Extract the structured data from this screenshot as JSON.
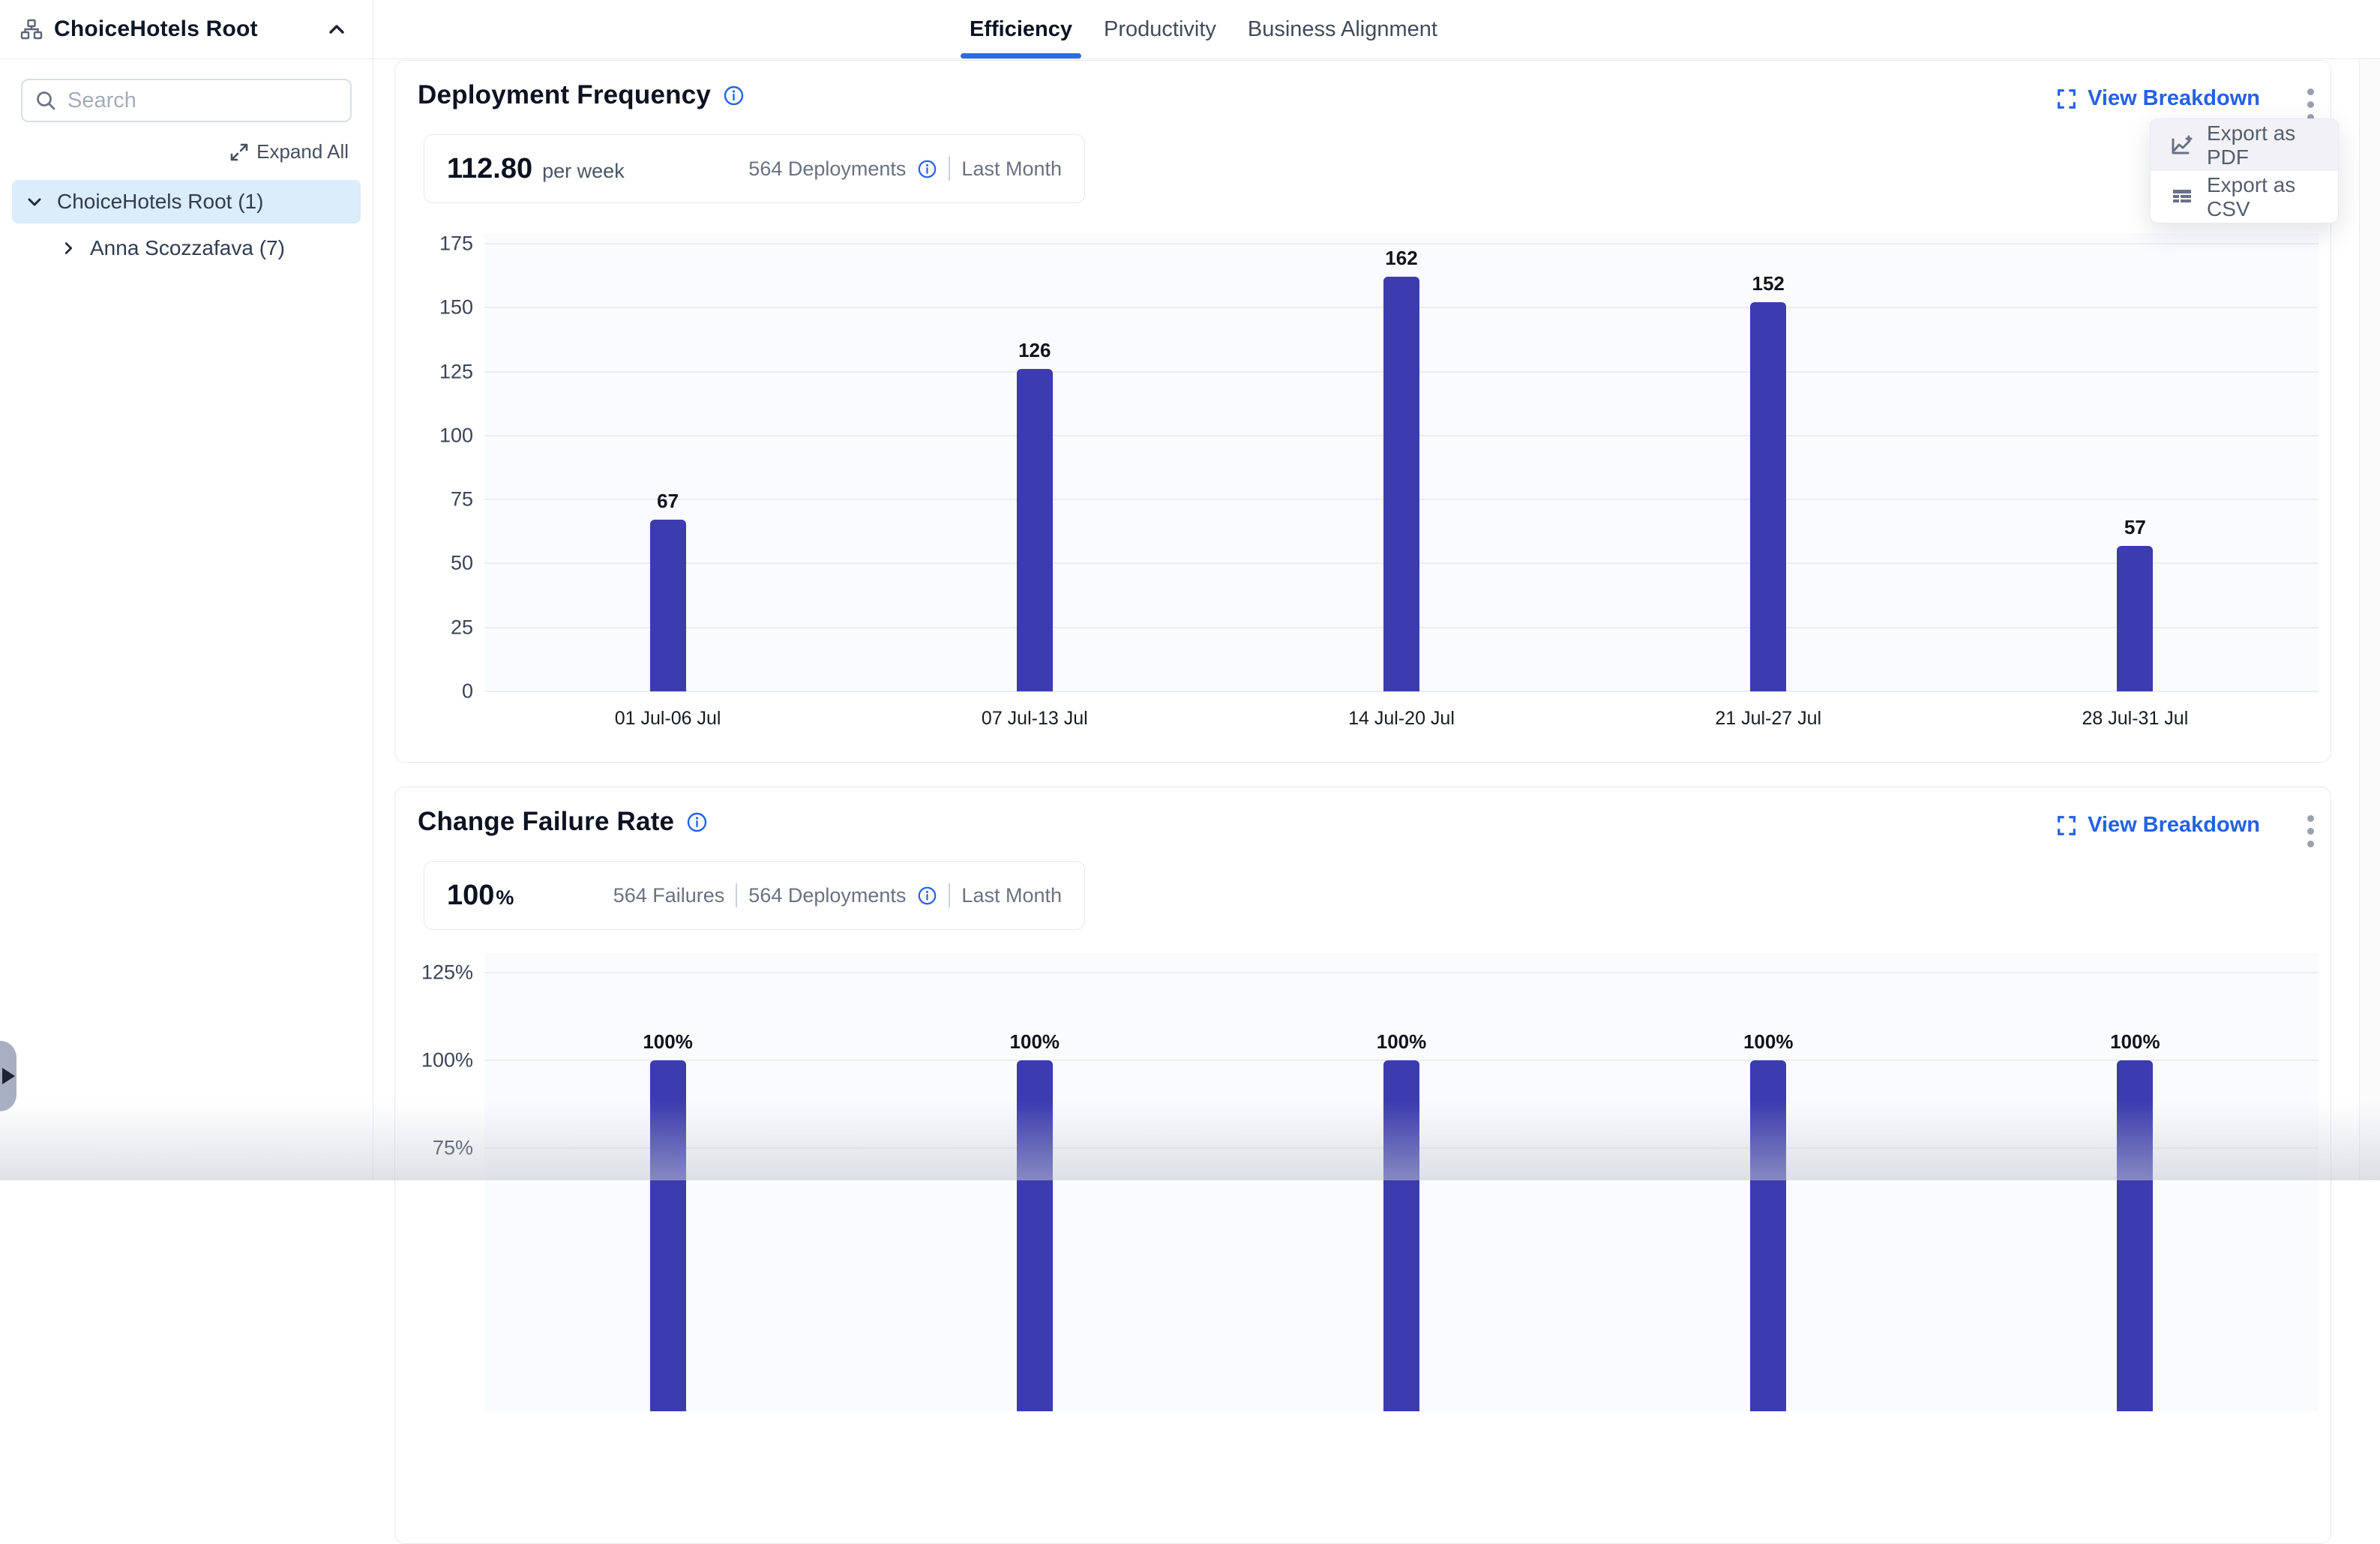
{
  "sidebar": {
    "title": "ChoiceHotels Root",
    "search": {
      "placeholder": "Search"
    },
    "expand_all_label": "Expand All",
    "tree": [
      {
        "label": "ChoiceHotels Root (1)",
        "state": "expanded",
        "selected": true
      },
      {
        "label": "Anna Scozzafava (7)",
        "state": "collapsed",
        "selected": false
      }
    ]
  },
  "tabs": [
    {
      "label": "Efficiency",
      "active": true
    },
    {
      "label": "Productivity",
      "active": false
    },
    {
      "label": "Business Alignment",
      "active": false
    }
  ],
  "export_menu": {
    "items": [
      {
        "label": "Export as PDF",
        "icon": "chart-line-plus-icon",
        "highlighted": true
      },
      {
        "label": "Export as CSV",
        "icon": "table-icon",
        "highlighted": false
      }
    ]
  },
  "cards": {
    "deployment_frequency": {
      "title": "Deployment Frequency",
      "action_label": "View Breakdown",
      "metric": {
        "value": "112.80",
        "unit": "per week",
        "context": "564 Deployments",
        "period": "Last Month"
      }
    },
    "change_failure_rate": {
      "title": "Change Failure Rate",
      "action_label": "View Breakdown",
      "metric": {
        "value": "100",
        "suffix": "%",
        "context_a": "564 Failures",
        "context_b": "564 Deployments",
        "period": "Last Month"
      }
    }
  },
  "chart_data": [
    {
      "id": "df",
      "type": "bar",
      "title": "Deployment Frequency",
      "categories": [
        "01 Jul-06 Jul",
        "07 Jul-13 Jul",
        "14 Jul-20 Jul",
        "21 Jul-27 Jul",
        "28 Jul-31 Jul"
      ],
      "values": [
        67,
        126,
        162,
        152,
        57
      ],
      "data_labels": [
        "67",
        "126",
        "162",
        "152",
        "57"
      ],
      "ylim": [
        0,
        175
      ],
      "yticks": [
        0,
        25,
        50,
        75,
        100,
        125,
        150,
        175
      ],
      "ytick_labels": [
        "0",
        "25",
        "50",
        "75",
        "100",
        "125",
        "150",
        "175"
      ],
      "show_x_labels": true,
      "grid": true,
      "legend": "none",
      "bar_color": "#3c3cae"
    },
    {
      "id": "cfr",
      "type": "bar",
      "title": "Change Failure Rate",
      "categories": [
        "01 Jul-06 Jul",
        "07 Jul-13 Jul",
        "14 Jul-20 Jul",
        "21 Jul-27 Jul",
        "28 Jul-31 Jul"
      ],
      "values": [
        100,
        100,
        100,
        100,
        100
      ],
      "data_labels": [
        "100%",
        "100%",
        "100%",
        "100%",
        "100%"
      ],
      "ylim": [
        0,
        125
      ],
      "yticks": [
        75,
        100,
        125
      ],
      "ytick_labels": [
        "75%",
        "100%",
        "125%"
      ],
      "show_x_labels": false,
      "grid": true,
      "legend": "none",
      "bar_color": "#3c3cae"
    }
  ],
  "colors": {
    "accent_blue": "#2563e8",
    "bar": "#3c3cae",
    "selected_row_bg": "#dbecfa",
    "border": "#e6e8ed"
  }
}
